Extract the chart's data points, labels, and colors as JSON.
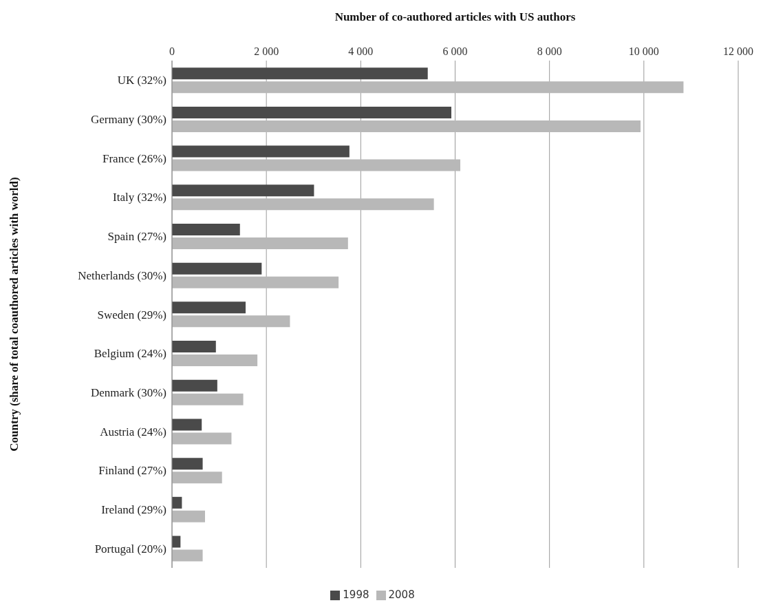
{
  "chart_data": {
    "type": "bar",
    "orientation": "horizontal",
    "xlabel": "Number of co-authored articles with US authors",
    "ylabel": "Country (share of total coauthored articles with world)",
    "categories": [
      "UK (32%)",
      "Germany (30%)",
      "France (26%)",
      "Italy (32%)",
      "Spain (27%)",
      "Netherlands (30%)",
      "Sweden (29%)",
      "Belgium (24%)",
      "Denmark (30%)",
      "Austria (24%)",
      "Finland (27%)",
      "Ireland (29%)",
      "Portugal (20%)"
    ],
    "series": [
      {
        "name": "1998",
        "color": "#4a4a4a",
        "values": [
          5420,
          5920,
          3760,
          3010,
          1440,
          1900,
          1560,
          930,
          960,
          630,
          650,
          210,
          180
        ]
      },
      {
        "name": "2008",
        "color": "#b8b8b8",
        "values": [
          10840,
          9930,
          6110,
          5550,
          3730,
          3530,
          2500,
          1810,
          1510,
          1260,
          1060,
          700,
          650
        ]
      }
    ],
    "xlim": [
      0,
      12000
    ],
    "xticks": [
      0,
      {
        "value": 2000,
        "label": "2 000"
      },
      {
        "value": 4000,
        "label": "4 000"
      },
      {
        "value": 6000,
        "label": "6 000"
      },
      {
        "value": 8000,
        "label": "8 000"
      },
      {
        "value": 10000,
        "label": "10 000"
      },
      {
        "value": 12000,
        "label": "12 000"
      }
    ],
    "grid": "x",
    "legend": "bottom"
  }
}
